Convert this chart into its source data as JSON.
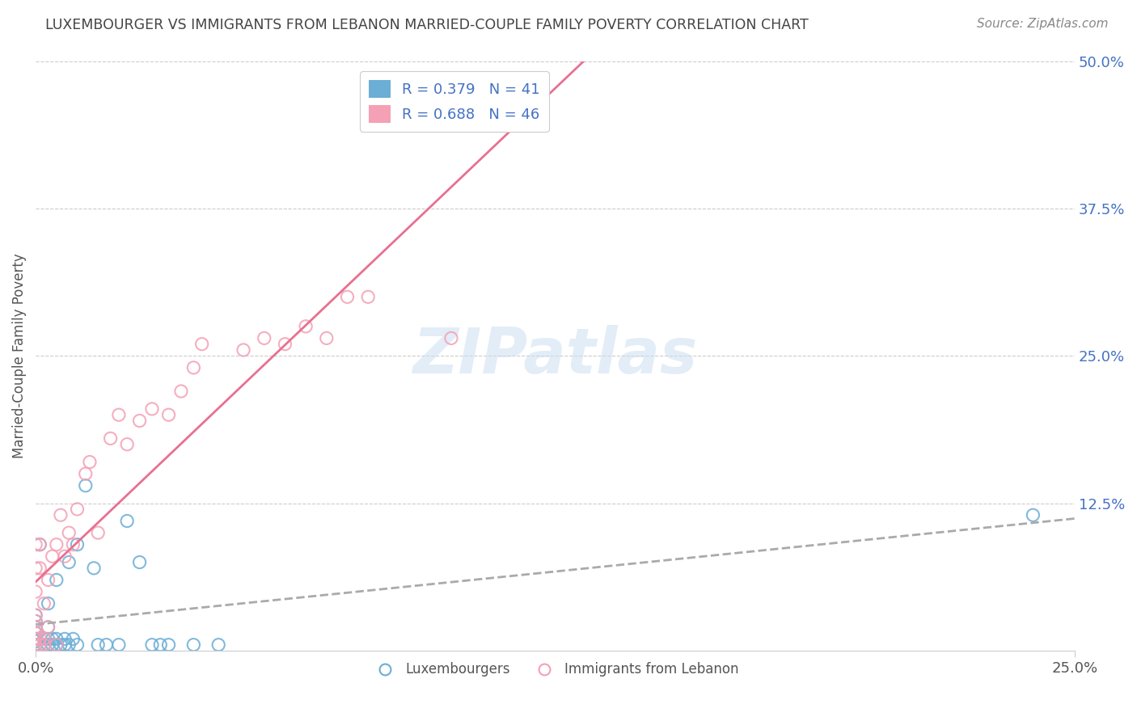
{
  "title": "LUXEMBOURGER VS IMMIGRANTS FROM LEBANON MARRIED-COUPLE FAMILY POVERTY CORRELATION CHART",
  "source": "Source: ZipAtlas.com",
  "ylabel": "Married-Couple Family Poverty",
  "xlim": [
    0.0,
    0.25
  ],
  "ylim": [
    0.0,
    0.5
  ],
  "ytick_labels": [
    "12.5%",
    "25.0%",
    "37.5%",
    "50.0%"
  ],
  "ytick_values": [
    0.125,
    0.25,
    0.375,
    0.5
  ],
  "xtick_values": [
    0.0,
    0.25
  ],
  "xtick_labels": [
    "0.0%",
    "25.0%"
  ],
  "R_lux": 0.379,
  "N_lux": 41,
  "R_leb": 0.688,
  "N_leb": 46,
  "color_lux": "#6baed6",
  "color_leb": "#f4a0b5",
  "color_lux_line": "#aaaaaa",
  "color_leb_line": "#e87090",
  "watermark": "ZIPatlas",
  "lux_scatter_x": [
    0.0,
    0.0,
    0.0,
    0.0,
    0.0,
    0.0,
    0.0,
    0.001,
    0.001,
    0.002,
    0.002,
    0.003,
    0.003,
    0.003,
    0.003,
    0.004,
    0.004,
    0.005,
    0.005,
    0.005,
    0.006,
    0.007,
    0.007,
    0.008,
    0.008,
    0.009,
    0.01,
    0.01,
    0.012,
    0.014,
    0.015,
    0.017,
    0.02,
    0.022,
    0.025,
    0.028,
    0.03,
    0.032,
    0.038,
    0.044,
    0.24
  ],
  "lux_scatter_y": [
    0.005,
    0.008,
    0.01,
    0.015,
    0.02,
    0.025,
    0.03,
    0.005,
    0.09,
    0.005,
    0.01,
    0.005,
    0.01,
    0.02,
    0.04,
    0.005,
    0.01,
    0.005,
    0.01,
    0.06,
    0.005,
    0.005,
    0.01,
    0.005,
    0.075,
    0.01,
    0.005,
    0.09,
    0.14,
    0.07,
    0.005,
    0.005,
    0.005,
    0.11,
    0.075,
    0.005,
    0.005,
    0.005,
    0.005,
    0.005,
    0.115
  ],
  "leb_scatter_x": [
    0.0,
    0.0,
    0.0,
    0.0,
    0.0,
    0.0,
    0.0,
    0.0,
    0.0,
    0.001,
    0.001,
    0.001,
    0.001,
    0.002,
    0.002,
    0.002,
    0.003,
    0.003,
    0.004,
    0.005,
    0.005,
    0.006,
    0.007,
    0.008,
    0.009,
    0.01,
    0.012,
    0.013,
    0.015,
    0.018,
    0.02,
    0.022,
    0.025,
    0.028,
    0.032,
    0.035,
    0.038,
    0.04,
    0.05,
    0.055,
    0.06,
    0.065,
    0.07,
    0.075,
    0.08,
    0.1
  ],
  "leb_scatter_y": [
    0.005,
    0.01,
    0.015,
    0.02,
    0.025,
    0.03,
    0.05,
    0.07,
    0.09,
    0.005,
    0.01,
    0.07,
    0.09,
    0.005,
    0.01,
    0.04,
    0.02,
    0.06,
    0.08,
    0.005,
    0.09,
    0.115,
    0.08,
    0.1,
    0.09,
    0.12,
    0.15,
    0.16,
    0.1,
    0.18,
    0.2,
    0.175,
    0.195,
    0.205,
    0.2,
    0.22,
    0.24,
    0.26,
    0.255,
    0.265,
    0.26,
    0.275,
    0.265,
    0.3,
    0.3,
    0.265
  ]
}
